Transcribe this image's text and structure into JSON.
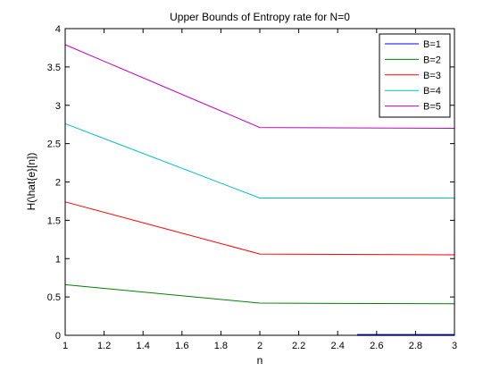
{
  "chart_data": {
    "type": "line",
    "title": "Upper Bounds of Entropy rate for N=0",
    "xlabel": "n",
    "ylabel": "H(\\hat{e}[n])",
    "xlim": [
      1,
      3
    ],
    "ylim": [
      0,
      4
    ],
    "xticks": [
      "1",
      "1.2",
      "1.4",
      "1.6",
      "1.8",
      "2",
      "2.2",
      "2.4",
      "2.6",
      "2.8",
      "3"
    ],
    "yticks": [
      "0",
      "0.5",
      "1",
      "1.5",
      "2",
      "2.5",
      "3",
      "3.5",
      "4"
    ],
    "grid": false,
    "legend_position": "top-right",
    "series": [
      {
        "name": "B=1",
        "color": "#0000ff",
        "x": [
          2.5,
          3
        ],
        "y": [
          0.005,
          0.005
        ]
      },
      {
        "name": "B=2",
        "color": "#008000",
        "x": [
          1,
          2,
          3
        ],
        "y": [
          0.66,
          0.42,
          0.41
        ]
      },
      {
        "name": "B=3",
        "color": "#ff0000",
        "x": [
          1,
          2,
          3
        ],
        "y": [
          1.74,
          1.06,
          1.05
        ]
      },
      {
        "name": "B=4",
        "color": "#00bfbf",
        "x": [
          1,
          2,
          3
        ],
        "y": [
          2.76,
          1.79,
          1.79
        ]
      },
      {
        "name": "B=5",
        "color": "#bf00bf",
        "x": [
          1,
          2,
          3
        ],
        "y": [
          3.79,
          2.71,
          2.7
        ]
      }
    ]
  }
}
